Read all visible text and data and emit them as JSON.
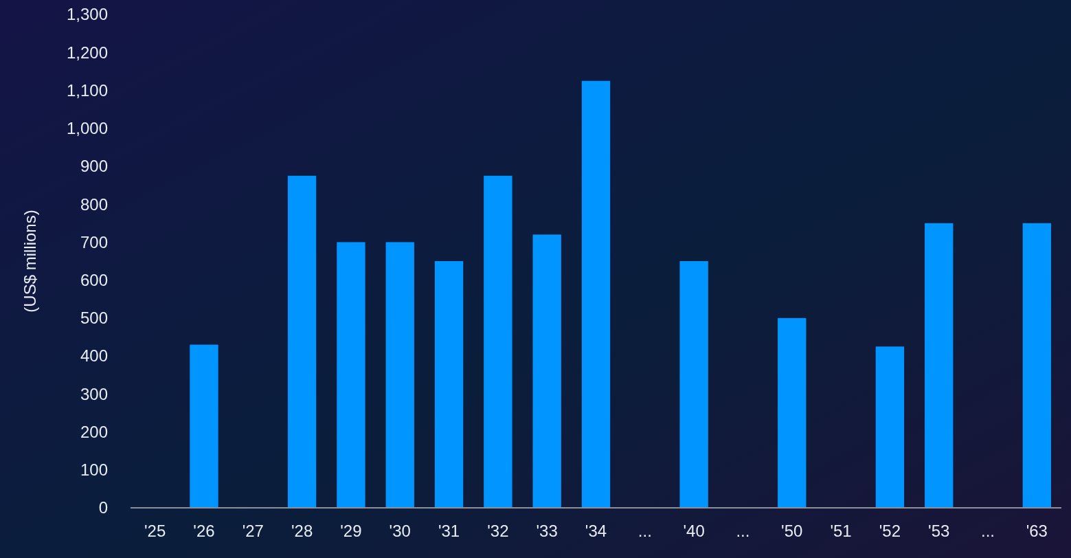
{
  "chart_data": {
    "type": "bar",
    "ylabel": "(US$ millions)",
    "categories": [
      "'25",
      "'26",
      "'27",
      "'28",
      "'29",
      "'30",
      "'31",
      "'32",
      "'33",
      "'34",
      "...",
      "'40",
      "...",
      "'50",
      "'51",
      "'52",
      "'53",
      "...",
      "'63"
    ],
    "values": [
      null,
      430,
      null,
      875,
      700,
      700,
      650,
      875,
      720,
      1125,
      null,
      650,
      null,
      500,
      null,
      425,
      750,
      null,
      750
    ],
    "color": "#0095ff",
    "ylim": [
      0,
      1300
    ],
    "yticks": [
      0,
      100,
      200,
      300,
      400,
      500,
      600,
      700,
      800,
      900,
      {
        "value": 1000,
        "label": "1,000"
      },
      {
        "value": 1100,
        "label": "1,100"
      },
      {
        "value": 1200,
        "label": "1,200"
      },
      {
        "value": 1300,
        "label": "1,300"
      }
    ],
    "grid": false
  }
}
